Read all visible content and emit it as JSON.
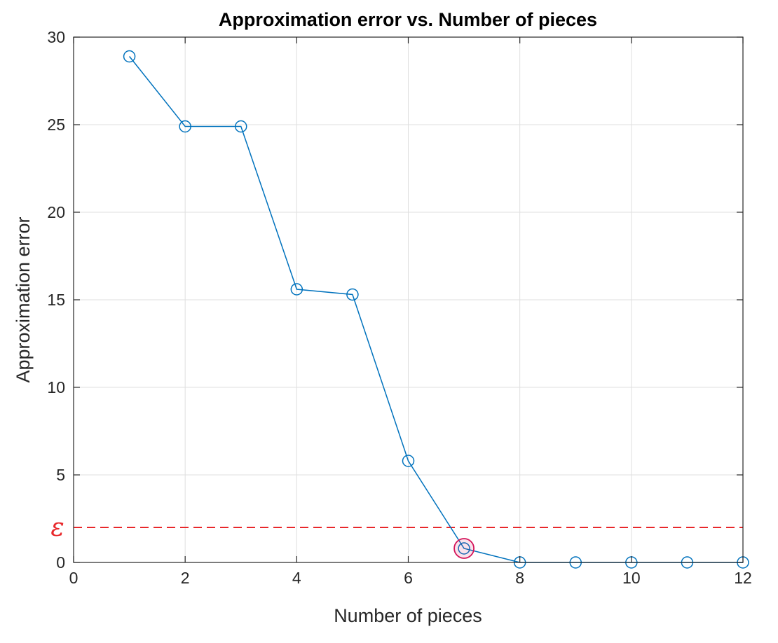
{
  "chart_data": {
    "type": "line",
    "title": "Approximation error vs. Number of pieces",
    "xlabel": "Number of pieces",
    "ylabel": "Approximation error",
    "xlim": [
      0,
      12
    ],
    "ylim": [
      0,
      30
    ],
    "xticks": [
      0,
      2,
      4,
      6,
      8,
      10,
      12
    ],
    "yticks": [
      0,
      5,
      10,
      15,
      20,
      25,
      30
    ],
    "grid": true,
    "series": [
      {
        "x": [
          1,
          2,
          3,
          4,
          5,
          6,
          7,
          8,
          9,
          10,
          11,
          12
        ],
        "values": [
          28.9,
          24.9,
          24.9,
          15.6,
          15.3,
          5.8,
          0.8,
          0,
          0,
          0,
          0,
          0
        ],
        "color": "#0072BD",
        "marker": "circle"
      }
    ],
    "threshold": {
      "y": 2,
      "label": "ε",
      "color": "#E8282B",
      "style": "dashed"
    },
    "highlight": {
      "x": 7,
      "y": 0.8,
      "color": "#D4145A"
    }
  }
}
